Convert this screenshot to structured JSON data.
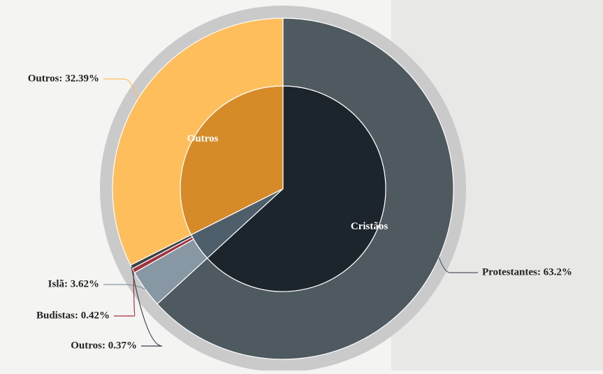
{
  "chart_data": {
    "type": "sunburst",
    "inner": {
      "categories": [
        "Cristãos",
        null,
        "Outros"
      ],
      "values": [
        63.2,
        4.41,
        32.39
      ],
      "colors": [
        "#1c252b",
        "#4e5f6b",
        "#d68b28"
      ]
    },
    "outer": {
      "values": [
        63.2,
        3.62,
        0.42,
        0.37,
        32.39
      ],
      "value_labels": [
        "Protestantes: 63.2%",
        "Islã: 3.62%",
        "Budistas: 0.42%",
        "Outros: 0.37%",
        "Outros: 32.39%"
      ],
      "colors": [
        "#4e5960",
        "#8797a3",
        "#a2323f",
        "#3a4248",
        "#ffbe5c"
      ]
    }
  }
}
